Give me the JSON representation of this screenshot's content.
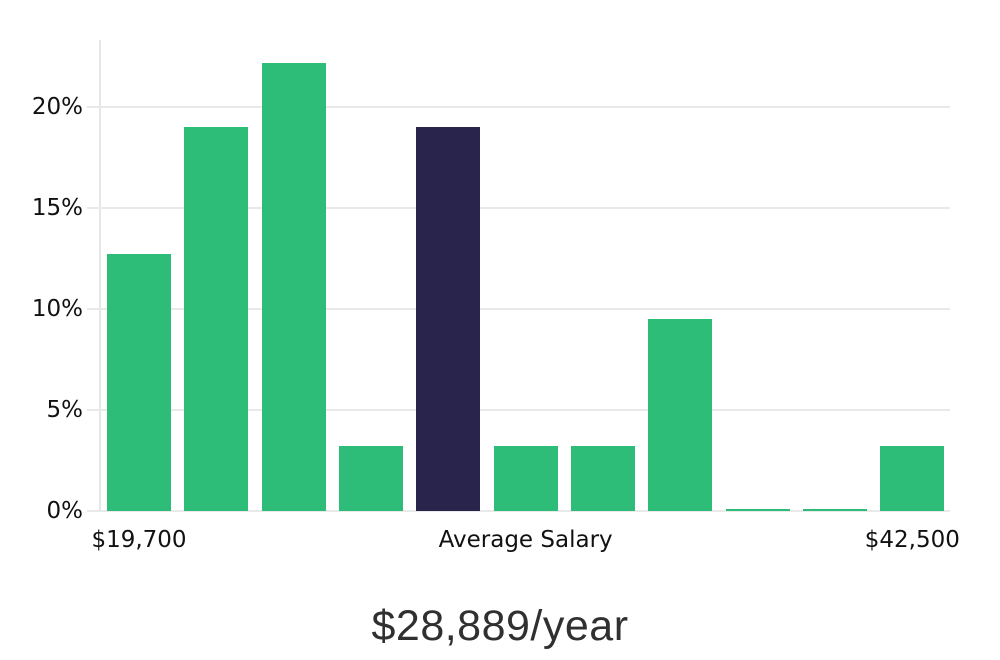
{
  "title": "$28,889/year",
  "chart_data": {
    "type": "bar",
    "values": [
      12.7,
      19.0,
      22.2,
      3.2,
      19.0,
      3.2,
      3.2,
      9.5,
      0.1,
      0.1,
      3.2
    ],
    "highlight_index": 4,
    "yticks": [
      {
        "label": "0%",
        "value": 0
      },
      {
        "label": "5%",
        "value": 5
      },
      {
        "label": "10%",
        "value": 10
      },
      {
        "label": "15%",
        "value": 15
      },
      {
        "label": "20%",
        "value": 20
      }
    ],
    "xticks": [
      {
        "label": "$19,700",
        "bar": 0
      },
      {
        "label": "Average Salary",
        "bar": 5
      },
      {
        "label": "$42,500",
        "bar": 10
      }
    ],
    "ylim": [
      0,
      23.3
    ],
    "legend": "none",
    "grid": "horizontal",
    "title": "$28,889/year",
    "xlabel": "",
    "ylabel": "",
    "colors": {
      "bar": "#2dbd78",
      "highlight_bar": "#28244c",
      "grid": "#e9e9e9",
      "text": "#111111"
    }
  }
}
